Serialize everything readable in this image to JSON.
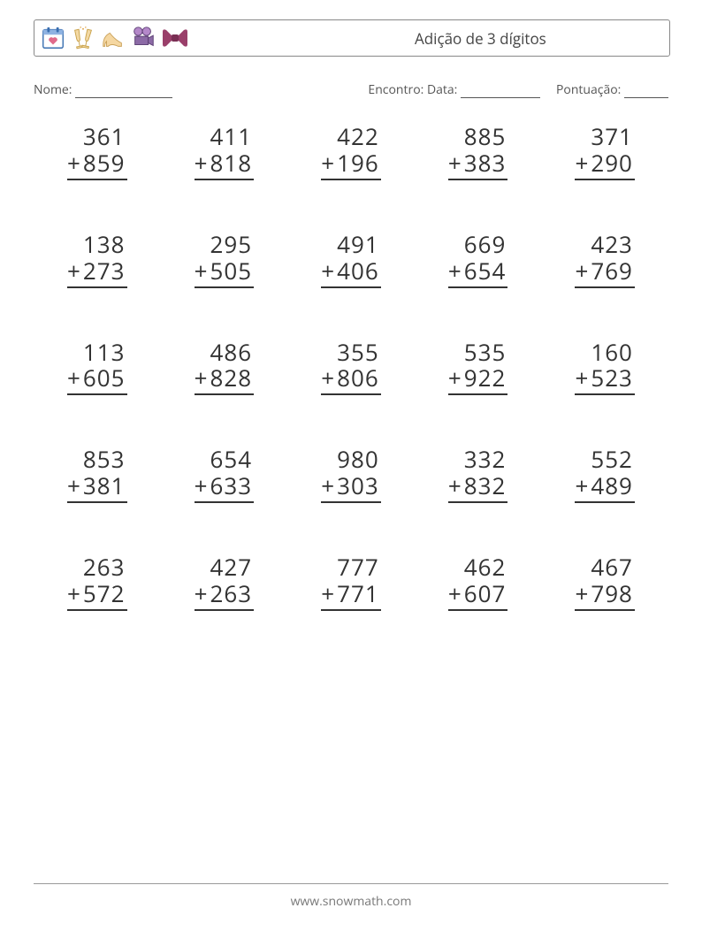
{
  "header": {
    "title": "Adição de 3 dígitos",
    "icons": [
      "calendar-heart-icon",
      "toast-glasses-icon",
      "high-heel-icon",
      "film-camera-icon",
      "bowtie-icon"
    ]
  },
  "info": {
    "name_label": "Nome:",
    "date_label": "Encontro: Data:",
    "score_label": "Pontuação:"
  },
  "worksheet": {
    "type": "math-worksheet",
    "operation": "+",
    "columns": 5,
    "rows": 5,
    "number_fontsize": 26,
    "number_color": "#333333",
    "underline_color": "#333333",
    "row_gap": 58,
    "problems": [
      {
        "a": 361,
        "b": 859
      },
      {
        "a": 411,
        "b": 818
      },
      {
        "a": 422,
        "b": 196
      },
      {
        "a": 885,
        "b": 383
      },
      {
        "a": 371,
        "b": 290
      },
      {
        "a": 138,
        "b": 273
      },
      {
        "a": 295,
        "b": 505
      },
      {
        "a": 491,
        "b": 406
      },
      {
        "a": 669,
        "b": 654
      },
      {
        "a": 423,
        "b": 769
      },
      {
        "a": 113,
        "b": 605
      },
      {
        "a": 486,
        "b": 828
      },
      {
        "a": 355,
        "b": 806
      },
      {
        "a": 535,
        "b": 922
      },
      {
        "a": 160,
        "b": 523
      },
      {
        "a": 853,
        "b": 381
      },
      {
        "a": 654,
        "b": 633
      },
      {
        "a": 980,
        "b": 303
      },
      {
        "a": 332,
        "b": 832
      },
      {
        "a": 552,
        "b": 489
      },
      {
        "a": 263,
        "b": 572
      },
      {
        "a": 427,
        "b": 263
      },
      {
        "a": 777,
        "b": 771
      },
      {
        "a": 462,
        "b": 607
      },
      {
        "a": 467,
        "b": 798
      }
    ]
  },
  "footer": {
    "url": "www.snowmath.com"
  },
  "colors": {
    "page_bg": "#ffffff",
    "text": "#333333",
    "border": "#888888",
    "footer_text": "#777777"
  }
}
